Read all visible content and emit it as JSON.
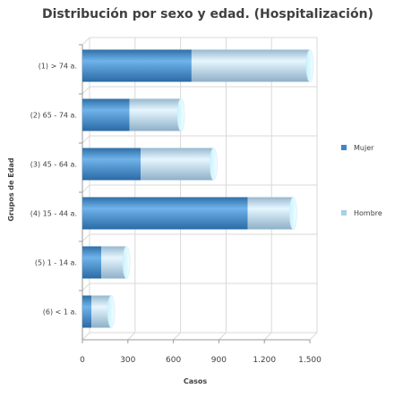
{
  "chart_data": {
    "type": "bar",
    "orientation": "horizontal",
    "stacked": true,
    "style": "3d-cylinder",
    "title": "Distribución por sexo y edad. (Hospitalización)",
    "xlabel": "Casos",
    "ylabel": "Grupos de Edad",
    "xlim": [
      0,
      1500
    ],
    "xticks": [
      0,
      300,
      600,
      900,
      1200,
      1500
    ],
    "xtick_labels": [
      "0",
      "300",
      "600",
      "900",
      "1.200",
      "1.500"
    ],
    "grid": true,
    "legend_position": "right",
    "categories": [
      "(1) > 74 a.",
      "(2) 65 - 74 a.",
      "(3) 45 - 64 a.",
      "(4) 15 - 44 a.",
      "(5) 1 - 14 a.",
      "(6) < 1 a."
    ],
    "series": [
      {
        "name": "Mujer",
        "color": "#3f86c6",
        "values": [
          720,
          310,
          385,
          1090,
          125,
          60
        ]
      },
      {
        "name": "Hombre",
        "color": "#a9cfe9",
        "values": [
          780,
          340,
          480,
          300,
          165,
          130
        ]
      }
    ]
  }
}
